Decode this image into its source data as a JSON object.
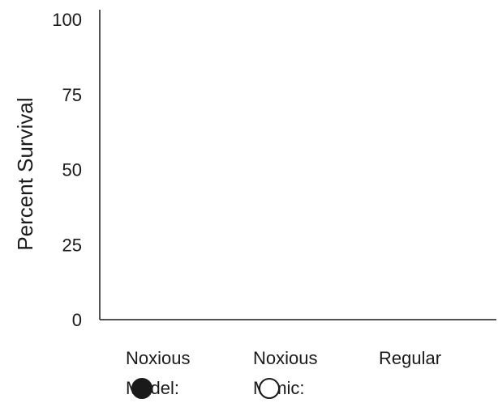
{
  "chart_data": {
    "type": "scatter",
    "title": "",
    "xlabel": "",
    "ylabel": "Percent  Survival",
    "ylim": [
      0,
      100
    ],
    "yticks": [
      0,
      25,
      50,
      75,
      100
    ],
    "categories": [
      {
        "line1": "Noxious",
        "line2": "Model:",
        "legend_marker": "filled-circle"
      },
      {
        "line1": "Noxious",
        "line2": "Mimic:",
        "legend_marker": "open-circle"
      },
      {
        "line1": "Regular",
        "line2": "",
        "legend_marker": "none"
      }
    ],
    "series": [],
    "grid": false,
    "colors": {
      "axis": "#1a1a1a",
      "marker_fill": "#1a1a1a",
      "background": "#ffffff"
    }
  }
}
